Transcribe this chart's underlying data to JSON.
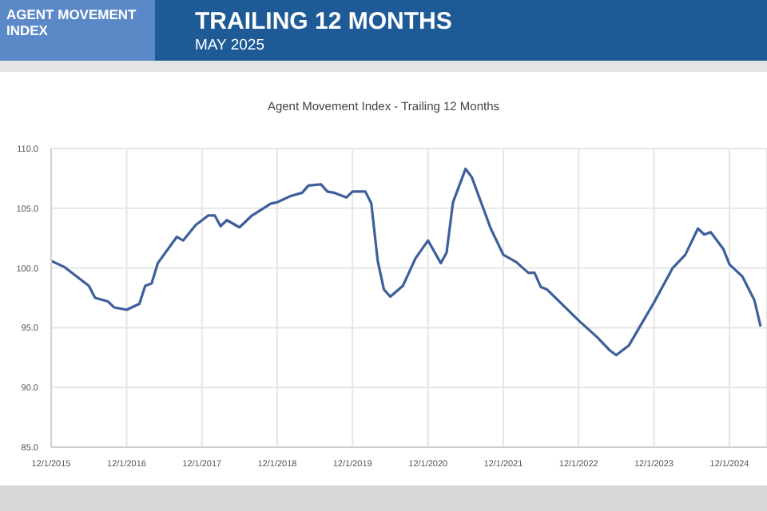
{
  "chart_data": {
    "type": "line",
    "title": "Agent Movement Index - Trailing 12 Months",
    "subtitle": "TRAILING 12 MONTHS",
    "annotations": [
      "AGENT MOVEMENT INDEX",
      "MAY 2025"
    ],
    "x": [
      "2015-12",
      "2016-02",
      "2016-06",
      "2016-07",
      "2016-09",
      "2016-10",
      "2016-12",
      "2017-02",
      "2017-03",
      "2017-04",
      "2017-05",
      "2017-08",
      "2017-09",
      "2017-11",
      "2018-01",
      "2018-02",
      "2018-03",
      "2018-04",
      "2018-06",
      "2018-08",
      "2018-11",
      "2018-12",
      "2019-02",
      "2019-04",
      "2019-05",
      "2019-07",
      "2019-08",
      "2019-09",
      "2019-11",
      "2019-12",
      "2020-02",
      "2020-03",
      "2020-04",
      "2020-05",
      "2020-06",
      "2020-08",
      "2020-10",
      "2020-12",
      "2021-02",
      "2021-03",
      "2021-04",
      "2021-06",
      "2021-07",
      "2021-10",
      "2021-12",
      "2022-02",
      "2022-04",
      "2022-05",
      "2022-06",
      "2022-07",
      "2022-12",
      "2023-03",
      "2023-05",
      "2023-06",
      "2023-08",
      "2023-10",
      "2023-12",
      "2024-03",
      "2024-05",
      "2024-07",
      "2024-08",
      "2024-09",
      "2024-11",
      "2024-12",
      "2025-02",
      "2025-04",
      "2025-05"
    ],
    "series": [
      {
        "color": "#3d5f9a",
        "values": [
          100.6,
          100.1,
          98.5,
          97.5,
          97.2,
          96.7,
          96.5,
          97.0,
          98.5,
          98.7,
          100.4,
          102.6,
          102.3,
          103.6,
          104.4,
          104.4,
          103.5,
          104.0,
          103.4,
          104.4,
          105.4,
          105.5,
          106.0,
          106.3,
          106.9,
          107.0,
          106.4,
          106.3,
          105.9,
          106.4,
          106.4,
          105.4,
          100.6,
          98.2,
          97.6,
          98.5,
          100.8,
          102.3,
          100.4,
          101.3,
          105.5,
          108.3,
          107.6,
          103.3,
          101.1,
          100.5,
          99.6,
          99.6,
          98.4,
          98.2,
          95.6,
          94.2,
          93.1,
          92.7,
          93.5,
          95.3,
          97.1,
          100.0,
          101.1,
          103.3,
          102.8,
          103.0,
          101.6,
          100.3,
          99.3,
          97.3,
          95.1
        ]
      }
    ],
    "xlim": [
      "2015-12",
      "2025-06"
    ],
    "xticks": [
      {
        "value": "2015-12",
        "label": "12/1/2015"
      },
      {
        "value": "2016-12",
        "label": "12/1/2016"
      },
      {
        "value": "2017-12",
        "label": "12/1/2017"
      },
      {
        "value": "2018-12",
        "label": "12/1/2018"
      },
      {
        "value": "2019-12",
        "label": "12/1/2019"
      },
      {
        "value": "2020-12",
        "label": "12/1/2020"
      },
      {
        "value": "2021-12",
        "label": "12/1/2021"
      },
      {
        "value": "2022-12",
        "label": "12/1/2022"
      },
      {
        "value": "2023-12",
        "label": "12/1/2023"
      },
      {
        "value": "2024-12",
        "label": "12/1/2024"
      }
    ],
    "ylim": [
      85,
      110
    ],
    "yticks": [
      {
        "value": 85,
        "label": "85.0"
      },
      {
        "value": 90,
        "label": "90.0"
      },
      {
        "value": 95,
        "label": "95.0"
      },
      {
        "value": 100,
        "label": "100.0"
      },
      {
        "value": 105,
        "label": "105.0"
      },
      {
        "value": 110,
        "label": "110.0"
      }
    ],
    "grid": true,
    "legend": false,
    "marker": "none",
    "line_style": "solid"
  }
}
